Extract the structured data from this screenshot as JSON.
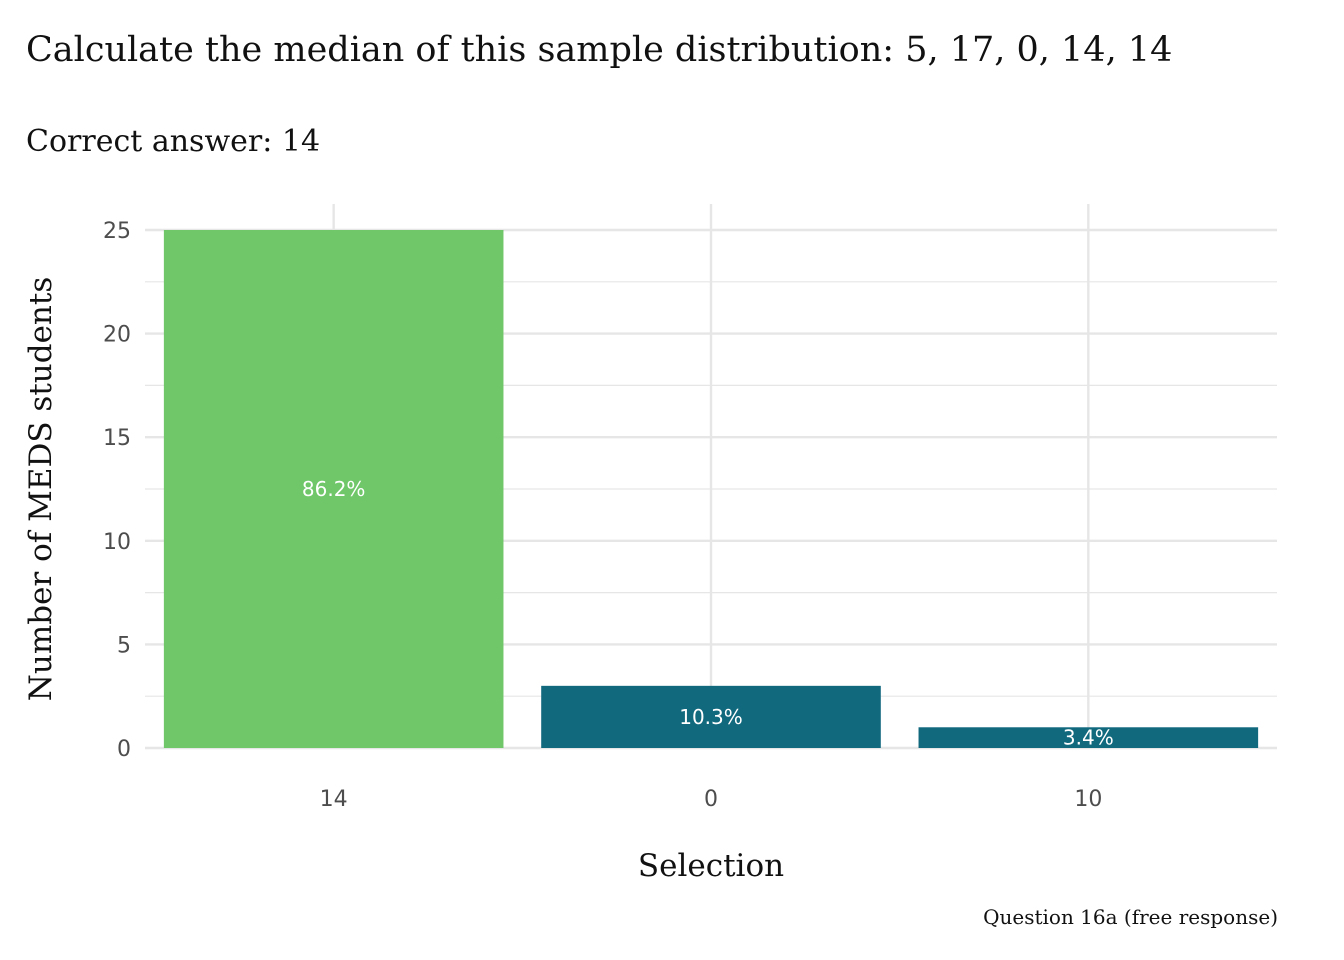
{
  "title": "Calculate the median of this sample distribution: 5, 17, 0, 14, 14",
  "subtitle": "Correct answer: 14",
  "caption": "Question 16a (free response)",
  "colors": {
    "correct": "#6fc769",
    "incorrect": "#11697e",
    "grid": "#e6e6e6"
  },
  "chart_data": {
    "type": "bar",
    "categories": [
      "14",
      "0",
      "10"
    ],
    "values": [
      25,
      3,
      1
    ],
    "data_labels": [
      "86.2%",
      "10.3%",
      "3.4%"
    ],
    "is_correct": [
      true,
      false,
      false
    ],
    "xlabel": "Selection",
    "ylabel": "Number of MEDS students",
    "ylim": [
      0,
      25
    ],
    "y_ticks": [
      0,
      5,
      10,
      15,
      20,
      25
    ],
    "grid": true,
    "legend": "none"
  }
}
